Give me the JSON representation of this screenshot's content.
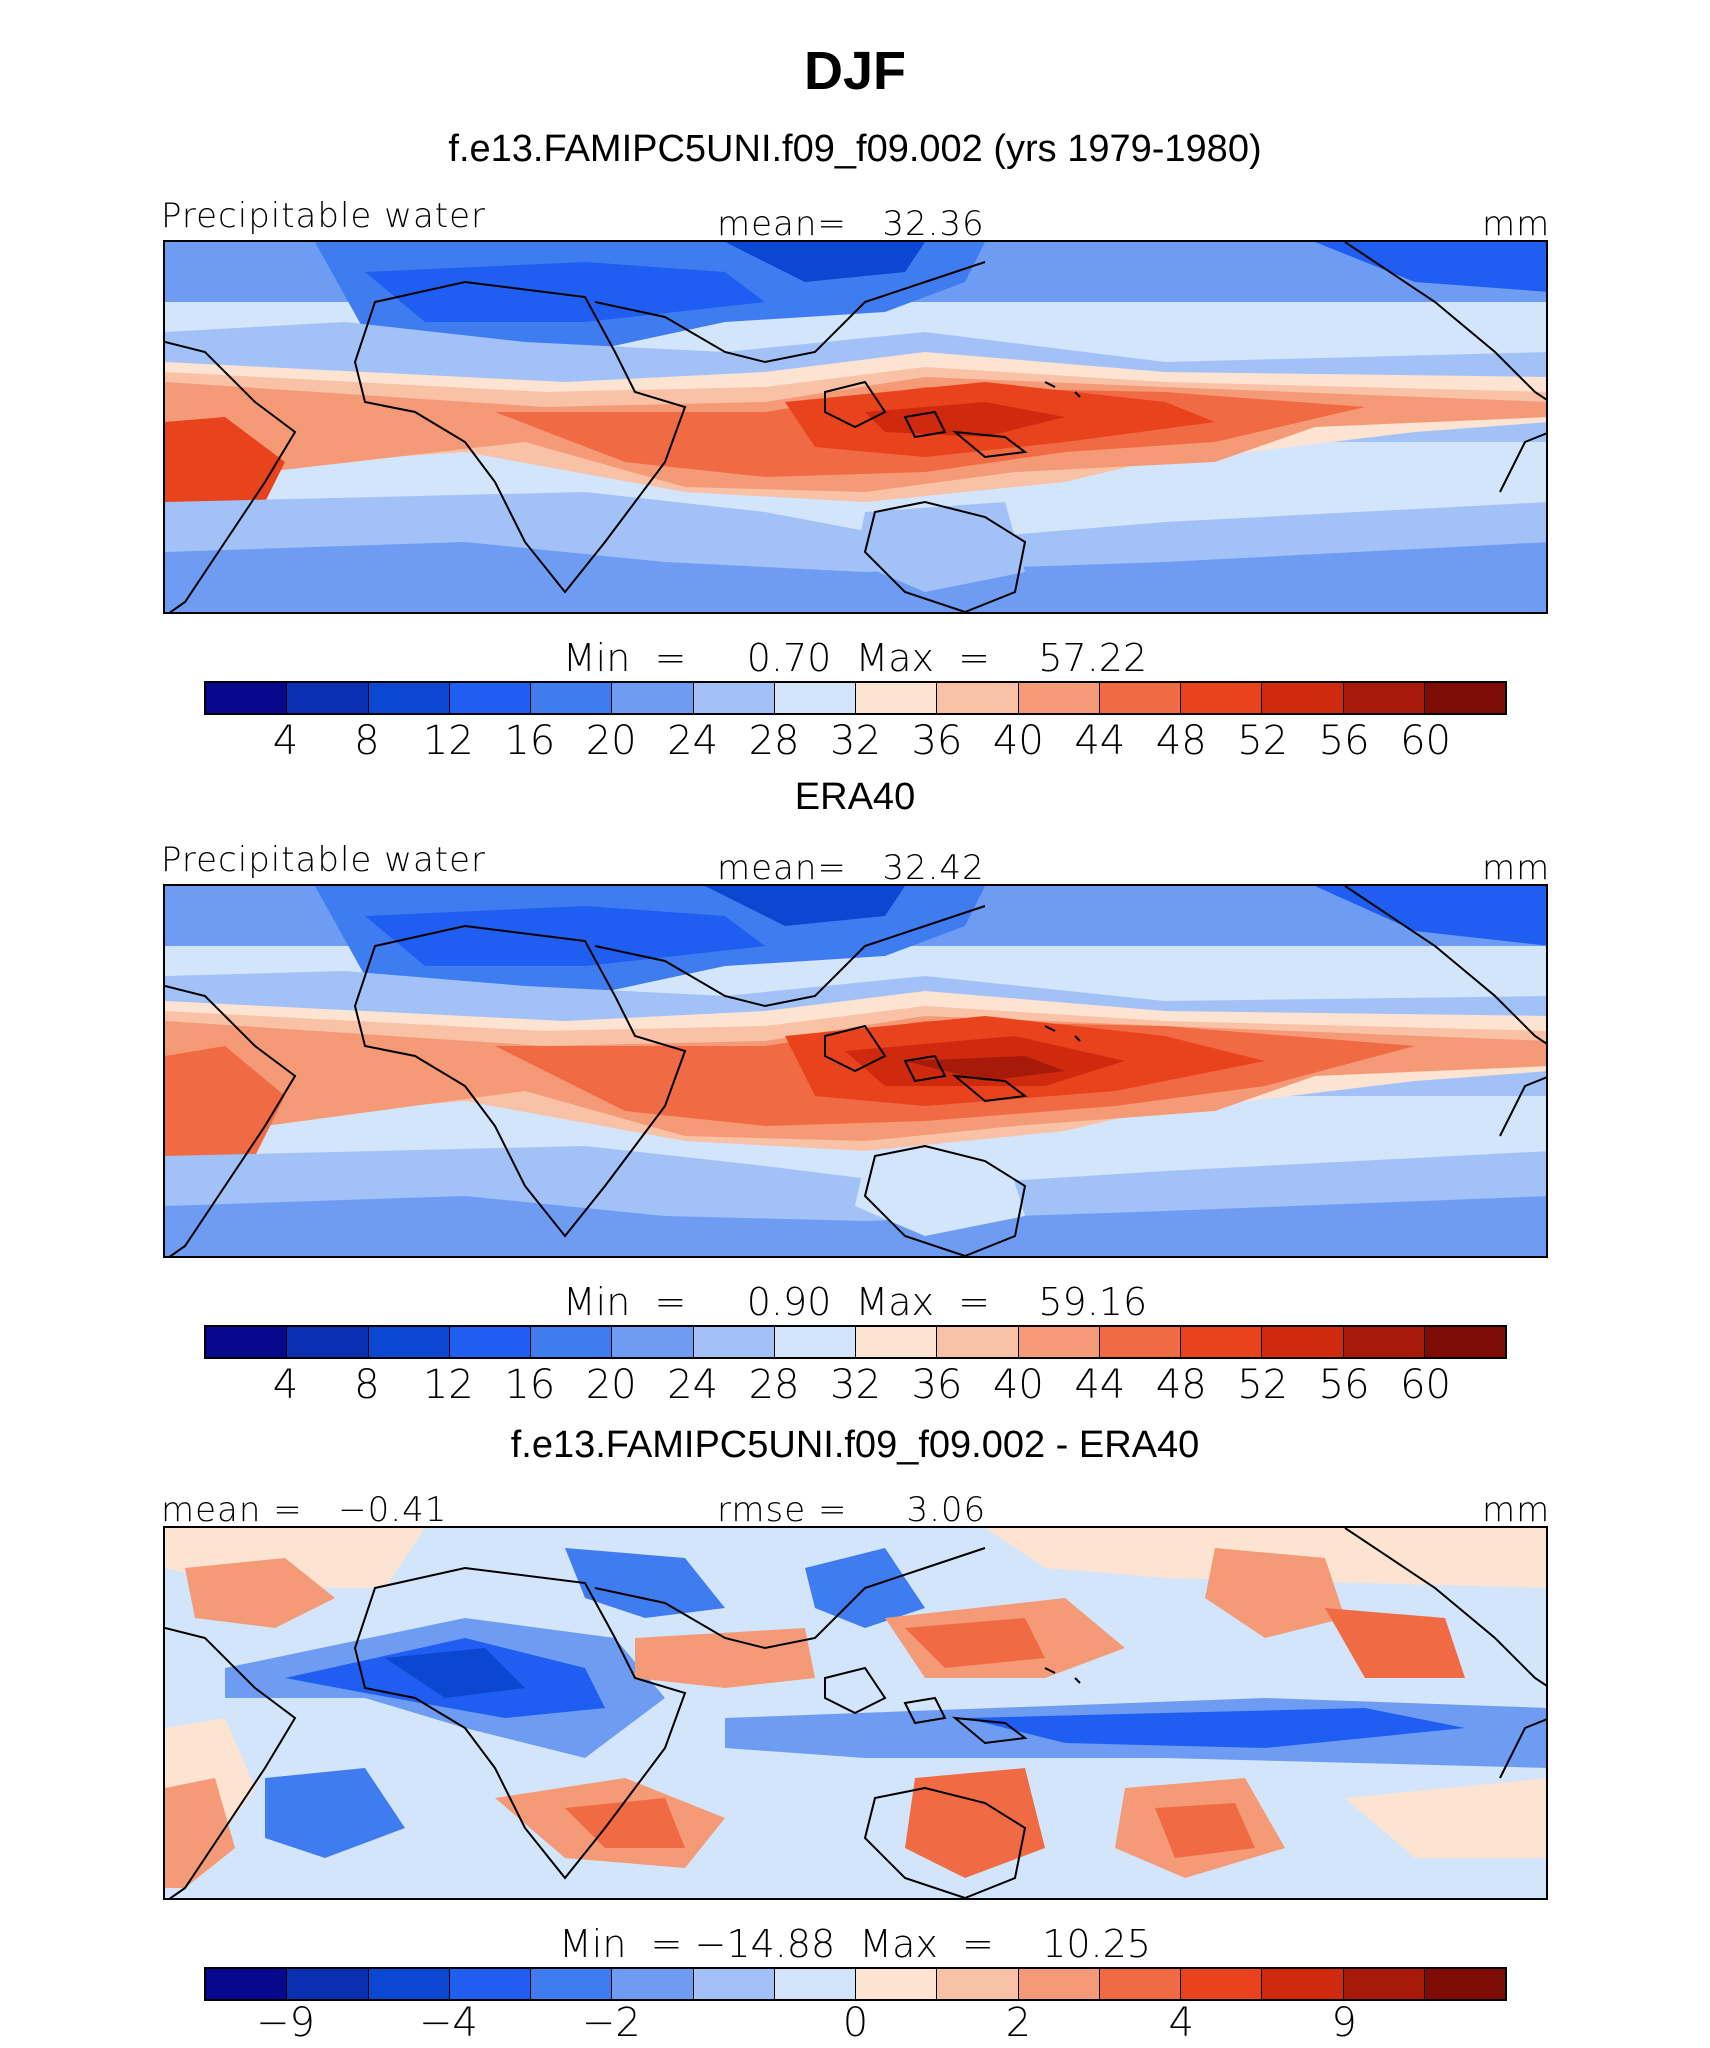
{
  "figure_title": "DJF",
  "colors": [
    "#08088c",
    "#0a2fb0",
    "#0c47d1",
    "#1f5ef0",
    "#3f7cf0",
    "#6e9cf2",
    "#a2c2f7",
    "#d2e5fa",
    "#fde3d2",
    "#f9c1a5",
    "#f59a76",
    "#f06a43",
    "#e8431c",
    "#d02a0e",
    "#a71a0a",
    "#7d0c06"
  ],
  "panels": [
    {
      "subtitle": "f.e13.FAMIPC5UNI.f09_f09.002 (yrs 1979-1980)",
      "left_label": "Precipitable water",
      "center_label": "mean=   32.36",
      "right_label": "mm",
      "min_max": "Min  =     0.70  Max  =    57.22",
      "colorbar_ticks": [
        "4",
        "8",
        "12",
        "16",
        "20",
        "24",
        "28",
        "32",
        "36",
        "40",
        "44",
        "48",
        "52",
        "56",
        "60"
      ],
      "mean_value": 32.36,
      "min_value": 0.7,
      "max_value": 57.22
    },
    {
      "subtitle": "ERA40",
      "left_label": "Precipitable water",
      "center_label": "mean=   32.42",
      "right_label": "mm",
      "min_max": "Min  =     0.90  Max  =    59.16",
      "colorbar_ticks": [
        "4",
        "8",
        "12",
        "16",
        "20",
        "24",
        "28",
        "32",
        "36",
        "40",
        "44",
        "48",
        "52",
        "56",
        "60"
      ],
      "mean_value": 32.42,
      "min_value": 0.9,
      "max_value": 59.16
    },
    {
      "subtitle": "f.e13.FAMIPC5UNI.f09_f09.002 - ERA40",
      "left_label": "mean =   −0.41",
      "center_label": "rmse =     3.06",
      "right_label": "mm",
      "min_max": "Min  = −14.88  Max  =    10.25",
      "colorbar_ticks": [
        "−9",
        "−4",
        "−2",
        "0",
        "2",
        "4",
        "9"
      ],
      "mean_value": -0.41,
      "rmse_value": 3.06,
      "min_value": -14.88,
      "max_value": 10.25
    }
  ]
}
